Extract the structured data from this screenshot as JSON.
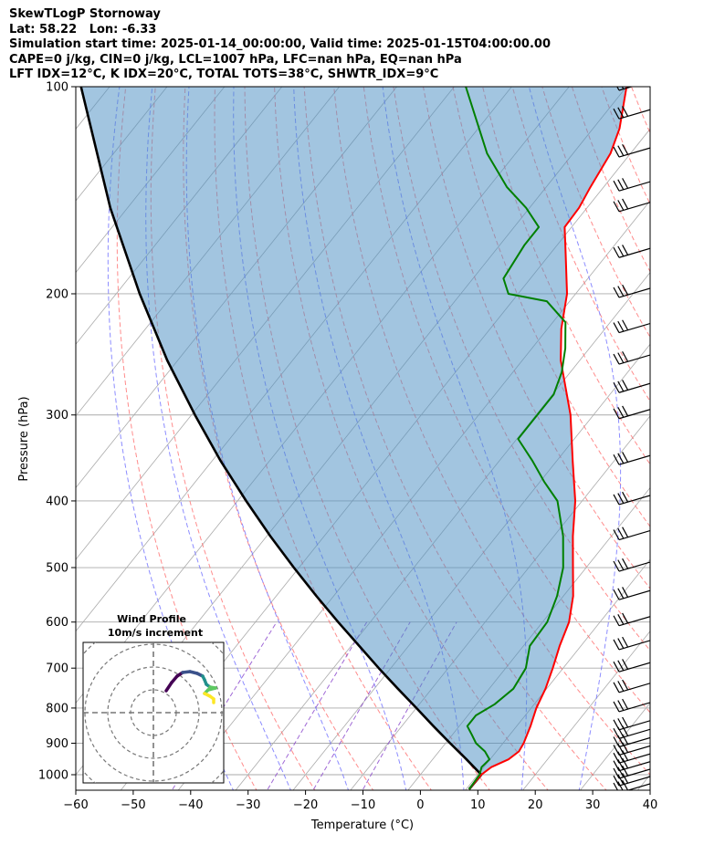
{
  "header": {
    "line1": "SkewTLogP Stornoway",
    "line2": "Lat: 58.22   Lon: -6.33",
    "line3": "Simulation start time: 2025-01-14_00:00:00, Valid time: 2025-01-15T04:00:00.00",
    "line4": "CAPE=0 j/kg, CIN=0 j/kg, LCL=1007 hPa, LFC=nan hPa, EQ=nan hPa",
    "line5": "LFT IDX=12°C, K IDX=20°C, TOTAL TOTS=38°C, SHWTR_IDX=9°C"
  },
  "chart_data": {
    "type": "line",
    "xlabel": "Temperature (°C)",
    "ylabel": "Pressure (hPa)",
    "xlim": [
      -60,
      40
    ],
    "ylim": [
      1050,
      100
    ],
    "y_scale": "log",
    "skew": true,
    "grid": true,
    "x_ticks": [
      -60,
      -50,
      -40,
      -30,
      -20,
      -10,
      0,
      10,
      20,
      30,
      40
    ],
    "y_ticks": [
      100,
      200,
      300,
      400,
      500,
      600,
      700,
      800,
      900,
      1000
    ],
    "colors": {
      "temperature": "#ff0000",
      "dewpoint": "#008000",
      "parcel": "#000000",
      "cin_fill": "#4d8fc4",
      "dry_adiabats": "#ff6666",
      "moist_adiabats": "#6666ff",
      "mixing_ratio": "#8844cc",
      "isotherms": "#aaaaaa"
    },
    "series": [
      {
        "key": "temperature",
        "points": [
          [
            1050,
            10.5
          ],
          [
            1000,
            10.6
          ],
          [
            975,
            11.3
          ],
          [
            950,
            13.2
          ],
          [
            925,
            13.9
          ],
          [
            900,
            13.6
          ],
          [
            850,
            12.4
          ],
          [
            800,
            10.9
          ],
          [
            750,
            9.8
          ],
          [
            700,
            8.2
          ],
          [
            650,
            6.3
          ],
          [
            600,
            4.6
          ],
          [
            550,
            1.7
          ],
          [
            500,
            -2.3
          ],
          [
            450,
            -6.7
          ],
          [
            400,
            -11.2
          ],
          [
            350,
            -17.2
          ],
          [
            300,
            -24.0
          ],
          [
            250,
            -33.3
          ],
          [
            225,
            -37.6
          ],
          [
            200,
            -41.5
          ],
          [
            175,
            -47.3
          ],
          [
            160,
            -51.2
          ],
          [
            150,
            -51.4
          ],
          [
            140,
            -52.3
          ],
          [
            125,
            -53.5
          ],
          [
            115,
            -55.4
          ],
          [
            100,
            -60.0
          ]
        ]
      },
      {
        "key": "dewpoint",
        "points": [
          [
            1050,
            10.5
          ],
          [
            1000,
            10.3
          ],
          [
            975,
            9.6
          ],
          [
            950,
            9.9
          ],
          [
            925,
            8.0
          ],
          [
            900,
            5.3
          ],
          [
            875,
            3.4
          ],
          [
            850,
            1.4
          ],
          [
            820,
            1.4
          ],
          [
            790,
            3.1
          ],
          [
            750,
            4.2
          ],
          [
            700,
            3.5
          ],
          [
            650,
            1.1
          ],
          [
            600,
            0.8
          ],
          [
            550,
            -1.1
          ],
          [
            500,
            -4.0
          ],
          [
            450,
            -8.4
          ],
          [
            400,
            -14.3
          ],
          [
            375,
            -19.3
          ],
          [
            350,
            -24.2
          ],
          [
            325,
            -29.8
          ],
          [
            300,
            -29.8
          ],
          [
            280,
            -29.8
          ],
          [
            260,
            -31.5
          ],
          [
            240,
            -34.2
          ],
          [
            220,
            -37.8
          ],
          [
            205,
            -44.0
          ],
          [
            200,
            -51.7
          ],
          [
            190,
            -54.7
          ],
          [
            170,
            -55.7
          ],
          [
            160,
            -55.7
          ],
          [
            150,
            -60.6
          ],
          [
            140,
            -66.8
          ],
          [
            125,
            -75.0
          ],
          [
            100,
            -88.0
          ]
        ]
      },
      {
        "key": "parcel",
        "points": [
          [
            1050,
            10.5
          ],
          [
            1000,
            10.6
          ],
          [
            950,
            5.9
          ],
          [
            900,
            0.8
          ],
          [
            850,
            -4.5
          ],
          [
            800,
            -10.0
          ],
          [
            750,
            -15.9
          ],
          [
            700,
            -22.1
          ],
          [
            650,
            -28.6
          ],
          [
            600,
            -35.6
          ],
          [
            550,
            -43.0
          ],
          [
            500,
            -50.9
          ],
          [
            450,
            -59.4
          ],
          [
            400,
            -68.5
          ],
          [
            350,
            -78.5
          ],
          [
            300,
            -89.4
          ],
          [
            250,
            -101.8
          ],
          [
            200,
            -115.9
          ],
          [
            150,
            -133.0
          ],
          [
            100,
            -155.0
          ]
        ]
      }
    ],
    "wind_barbs_pressures": [
      1050,
      1025,
      1000,
      975,
      950,
      925,
      900,
      875,
      850,
      800,
      750,
      700,
      650,
      600,
      550,
      500,
      450,
      400,
      350,
      300,
      275,
      250,
      225,
      200,
      175,
      150,
      140,
      125,
      110,
      100
    ],
    "inset": {
      "title": "Wind Profile",
      "subtitle": "10m/s increment",
      "type": "hodograph",
      "colors": [
        "#440154",
        "#3b528b",
        "#21918c",
        "#5ec962",
        "#fde725"
      ]
    }
  }
}
